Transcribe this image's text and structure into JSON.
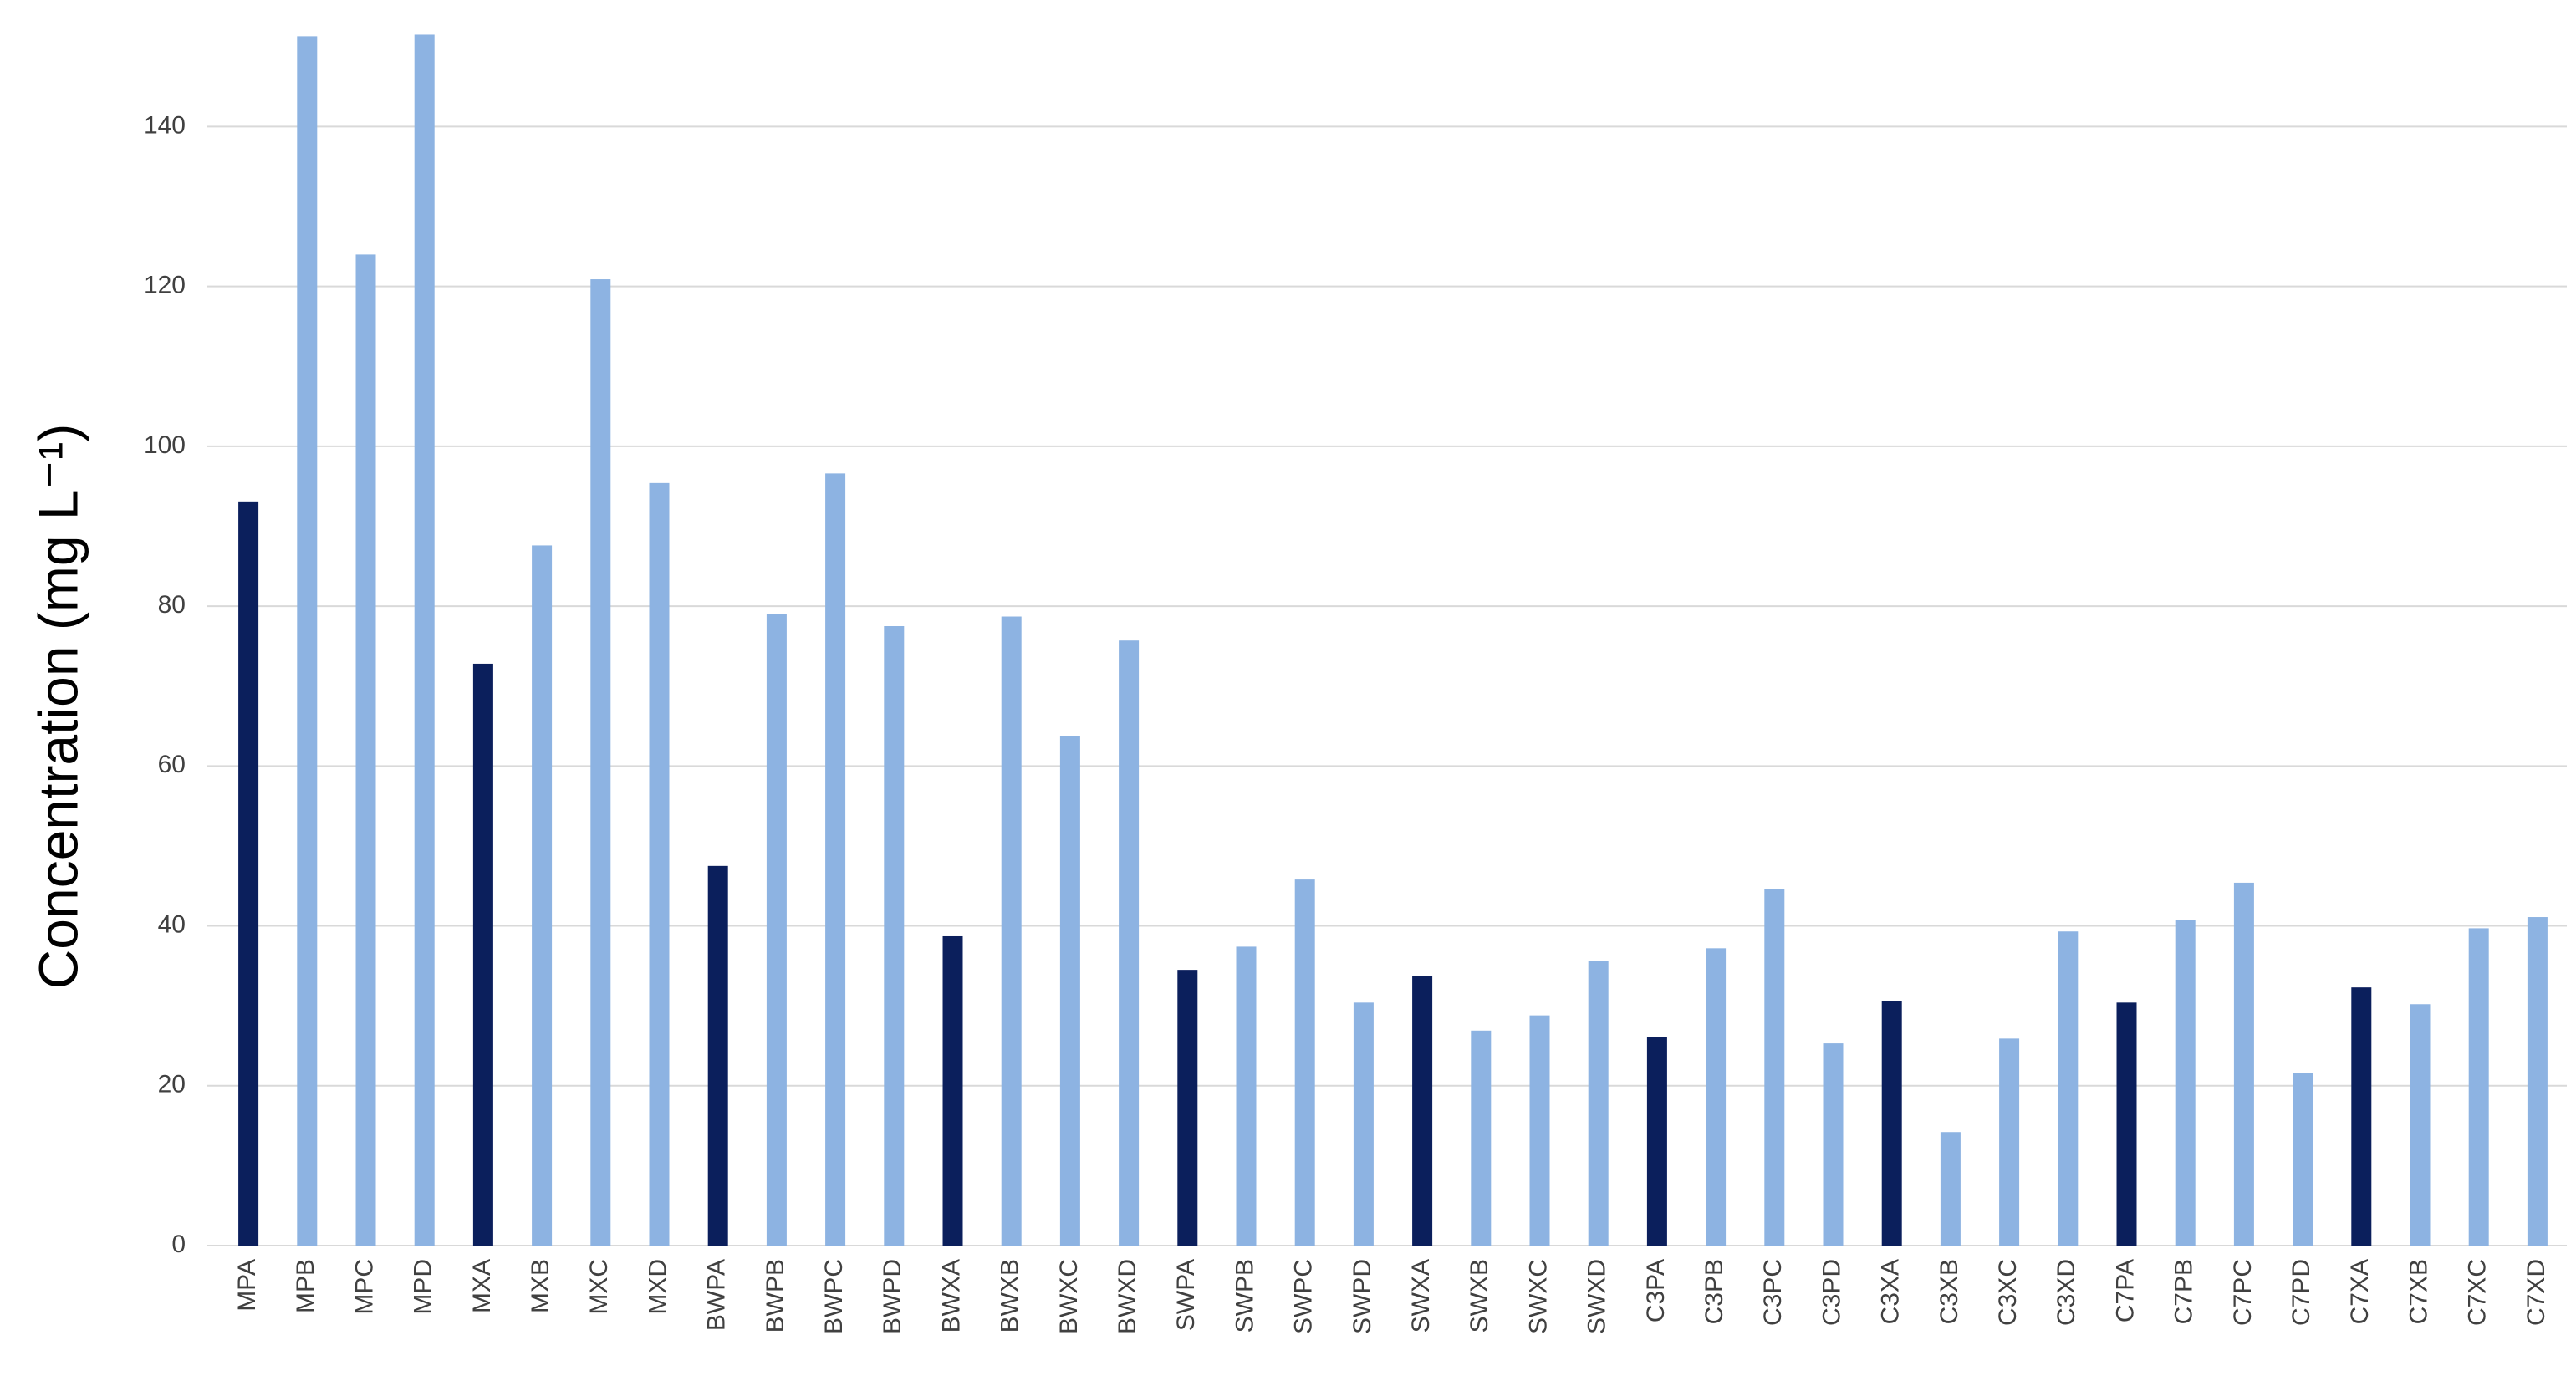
{
  "chart_data": {
    "type": "bar",
    "y_label": "Concentration (mg L⁻¹)",
    "categories": [
      "MPA",
      "MPB",
      "MPC",
      "MPD",
      "MXA",
      "MXB",
      "MXC",
      "MXD",
      "BWPA",
      "BWPB",
      "BWPC",
      "BWPD",
      "BWXA",
      "BWXB",
      "BWXC",
      "BWXD",
      "SWPA",
      "SWPB",
      "SWPC",
      "SWPD",
      "SWXA",
      "SWXB",
      "SWXC",
      "SWXD",
      "C3PA",
      "C3PB",
      "C3PC",
      "C3PD",
      "C3XA",
      "C3XB",
      "C3XC",
      "C3XD",
      "C7PA",
      "C7PB",
      "C7PC",
      "C7PD",
      "C7XA",
      "C7XB",
      "C7XC",
      "C7XD"
    ],
    "values": [
      93.1,
      151.3,
      124,
      151.5,
      72.8,
      87.6,
      120.9,
      95.4,
      47.5,
      79,
      96.6,
      77.5,
      38.7,
      78.7,
      63.7,
      75.7,
      34.5,
      37.4,
      45.8,
      30.4,
      33.7,
      26.9,
      28.8,
      35.6,
      26.1,
      37.2,
      44.6,
      25.3,
      30.6,
      14.2,
      25.9,
      39.3,
      30.4,
      40.7,
      45.4,
      21.6,
      32.3,
      30.2,
      39.7,
      41.1
    ],
    "colors": [
      "#0b1f5c",
      "#8db3e2",
      "#8db3e2",
      "#8db3e2",
      "#0b1f5c",
      "#8db3e2",
      "#8db3e2",
      "#8db3e2",
      "#0b1f5c",
      "#8db3e2",
      "#8db3e2",
      "#8db3e2",
      "#0b1f5c",
      "#8db3e2",
      "#8db3e2",
      "#8db3e2",
      "#0b1f5c",
      "#8db3e2",
      "#8db3e2",
      "#8db3e2",
      "#0b1f5c",
      "#8db3e2",
      "#8db3e2",
      "#8db3e2",
      "#0b1f5c",
      "#8db3e2",
      "#8db3e2",
      "#8db3e2",
      "#0b1f5c",
      "#8db3e2",
      "#8db3e2",
      "#8db3e2",
      "#0b1f5c",
      "#8db3e2",
      "#8db3e2",
      "#8db3e2",
      "#0b1f5c",
      "#8db3e2",
      "#8db3e2",
      "#8db3e2"
    ],
    "ylim": [
      0,
      155
    ],
    "yticks": [
      0,
      20,
      40,
      60,
      80,
      100,
      120,
      140
    ],
    "grid": true
  }
}
